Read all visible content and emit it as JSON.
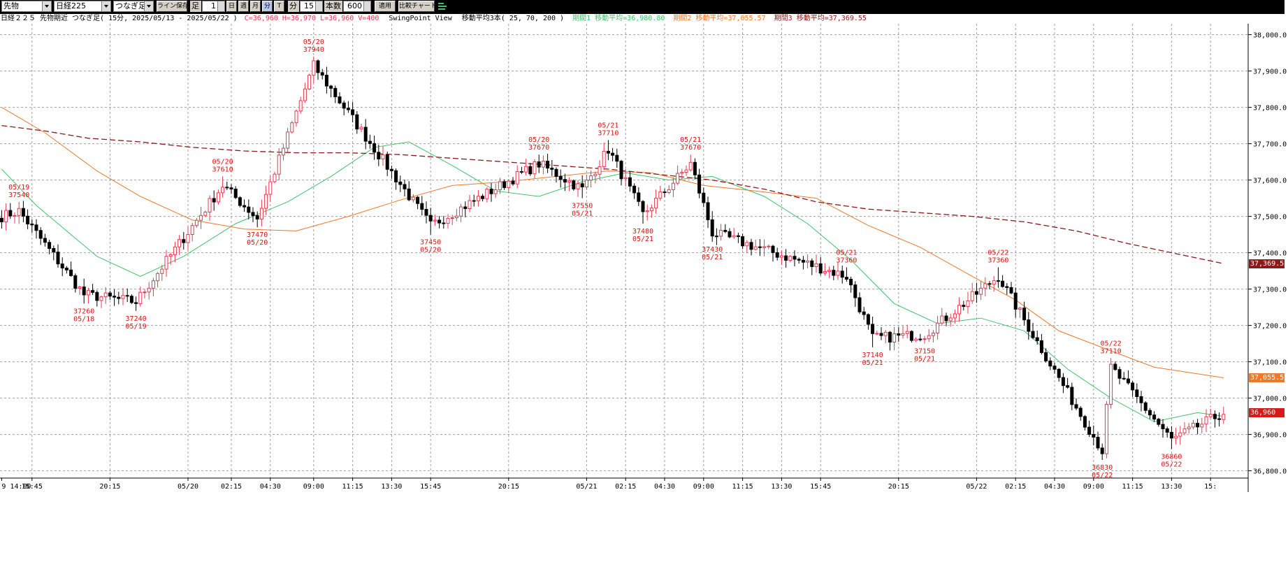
{
  "toolbar": {
    "symbol_type": "先物",
    "instrument": "日経225",
    "continuity": "つなぎ足",
    "line_save_label": "ライン保存",
    "bar_label": "足",
    "bar_count_value": "1",
    "period_day": "日",
    "period_week": "週",
    "period_month": "月",
    "period_minute": "分",
    "period_tick": "T",
    "minute_label": "分",
    "minute_value": "15",
    "bar_num_label": "本数",
    "bar_num_value": "600",
    "apply_label": "適用",
    "compare_label": "比較チャート"
  },
  "legend": {
    "title": "日経２２５ 先物期近 つなぎ足( 15分, 2025/05/13 - 2025/05/22 )",
    "ohlcv": "C=36,960 H=36,970 L=36,960 V=400",
    "view": "SwingPoint View",
    "ma_desc": "移動平均3本( 25, 70, 200 )",
    "ma1": "期間1 移動平均=36,980.80",
    "ma2": "期間2 移動平均=37,055.57",
    "ma3": "期間3 移動平均=37,369.55"
  },
  "colors": {
    "up": "#e8384f",
    "down": "#000000",
    "ma1": "#3dc46a",
    "ma2": "#f07828",
    "ma3": "#8b1a1a",
    "swing_label": "#dd1111",
    "price_tag": "#d61a1a",
    "grid": "#a0a0a0"
  },
  "chart_data": {
    "type": "candlestick",
    "ylim": [
      36780,
      38030
    ],
    "y_ticks": [
      {
        "value": 38000,
        "label": "38,000.0"
      },
      {
        "value": 37900,
        "label": "37,900.0"
      },
      {
        "value": 37800,
        "label": "37,800.0"
      },
      {
        "value": 37700,
        "label": "37,700.0"
      },
      {
        "value": 37600,
        "label": "37,600.0"
      },
      {
        "value": 37500,
        "label": "37,500.0"
      },
      {
        "value": 37400,
        "label": "37,400.0"
      },
      {
        "value": 37300,
        "label": "37,300.0"
      },
      {
        "value": 37200,
        "label": "37,200.0"
      },
      {
        "value": 37100,
        "label": "37,100.0"
      },
      {
        "value": 37000,
        "label": "37,000.0"
      },
      {
        "value": 36900,
        "label": "36,900.0"
      },
      {
        "value": 36800,
        "label": "36,800.0"
      }
    ],
    "x_ticks": [
      {
        "bar": 0,
        "label": "9 14:00"
      },
      {
        "bar": 7,
        "label": "15:45"
      },
      {
        "bar": 25,
        "label": "20:15"
      },
      {
        "bar": 43,
        "label": "05/20"
      },
      {
        "bar": 53,
        "label": "02:15"
      },
      {
        "bar": 62,
        "label": "04:30"
      },
      {
        "bar": 72,
        "label": "09:00"
      },
      {
        "bar": 81,
        "label": "11:15"
      },
      {
        "bar": 90,
        "label": "13:30"
      },
      {
        "bar": 99,
        "label": "15:45"
      },
      {
        "bar": 117,
        "label": "20:15"
      },
      {
        "bar": 135,
        "label": "05/21"
      },
      {
        "bar": 144,
        "label": "02:15"
      },
      {
        "bar": 153,
        "label": "04:30"
      },
      {
        "bar": 162,
        "label": "09:00"
      },
      {
        "bar": 171,
        "label": "11:15"
      },
      {
        "bar": 180,
        "label": "13:30"
      },
      {
        "bar": 189,
        "label": "15:45"
      },
      {
        "bar": 207,
        "label": "20:15"
      },
      {
        "bar": 225,
        "label": "05/22"
      },
      {
        "bar": 234,
        "label": "02:15"
      },
      {
        "bar": 243,
        "label": "04:30"
      },
      {
        "bar": 252,
        "label": "09:00"
      },
      {
        "bar": 261,
        "label": "11:15"
      },
      {
        "bar": 270,
        "label": "13:30"
      },
      {
        "bar": 279,
        "label": "15:"
      }
    ],
    "swing_labels": [
      {
        "bar": 4,
        "price": 37540,
        "type": "high",
        "date": "05/19"
      },
      {
        "bar": 19,
        "price": 37260,
        "type": "low",
        "date": "05/18"
      },
      {
        "bar": 31,
        "price": 37240,
        "type": "low",
        "date": "05/19"
      },
      {
        "bar": 51,
        "price": 37610,
        "type": "high",
        "date": "05/20"
      },
      {
        "bar": 59,
        "price": 37470,
        "type": "low",
        "date": "05/20"
      },
      {
        "bar": 72,
        "price": 37940,
        "type": "high",
        "date": "05/20"
      },
      {
        "bar": 99,
        "price": 37450,
        "type": "low",
        "date": "05/20"
      },
      {
        "bar": 124,
        "price": 37670,
        "type": "high",
        "date": "05/20"
      },
      {
        "bar": 134,
        "price": 37550,
        "type": "low",
        "date": "05/21"
      },
      {
        "bar": 140,
        "price": 37710,
        "type": "high",
        "date": "05/21"
      },
      {
        "bar": 148,
        "price": 37480,
        "type": "low",
        "date": "05/21"
      },
      {
        "bar": 159,
        "price": 37670,
        "type": "high",
        "date": "05/21"
      },
      {
        "bar": 164,
        "price": 37430,
        "type": "low",
        "date": "05/21"
      },
      {
        "bar": 195,
        "price": 37360,
        "type": "high",
        "date": "05/21"
      },
      {
        "bar": 201,
        "price": 37140,
        "type": "low",
        "date": "05/21"
      },
      {
        "bar": 213,
        "price": 37150,
        "type": "low",
        "date": "05/21"
      },
      {
        "bar": 230,
        "price": 37360,
        "type": "high",
        "date": "05/22"
      },
      {
        "bar": 254,
        "price": 36830,
        "type": "low",
        "date": "05/22"
      },
      {
        "bar": 256,
        "price": 37110,
        "type": "high",
        "date": "05/22"
      },
      {
        "bar": 270,
        "price": 36860,
        "type": "low",
        "date": "05/22"
      }
    ],
    "price_tags": [
      {
        "name": "ma3",
        "value": 37369.55,
        "label": "37,369.55"
      },
      {
        "name": "ma2",
        "value": 37055.57,
        "label": "37,055.57"
      },
      {
        "name": "close",
        "value": 36960,
        "label": "36,960"
      }
    ],
    "ma_paths": {
      "ma1": [
        [
          0,
          37630
        ],
        [
          8,
          37530
        ],
        [
          22,
          37390
        ],
        [
          32,
          37335
        ],
        [
          42,
          37390
        ],
        [
          54,
          37480
        ],
        [
          66,
          37540
        ],
        [
          76,
          37610
        ],
        [
          86,
          37690
        ],
        [
          94,
          37705
        ],
        [
          104,
          37640
        ],
        [
          114,
          37570
        ],
        [
          124,
          37555
        ],
        [
          134,
          37595
        ],
        [
          144,
          37620
        ],
        [
          154,
          37600
        ],
        [
          164,
          37610
        ],
        [
          176,
          37555
        ],
        [
          186,
          37480
        ],
        [
          196,
          37380
        ],
        [
          206,
          37260
        ],
        [
          216,
          37205
        ],
        [
          226,
          37220
        ],
        [
          236,
          37185
        ],
        [
          246,
          37080
        ],
        [
          256,
          37000
        ],
        [
          266,
          36935
        ],
        [
          276,
          36960
        ],
        [
          282,
          36950
        ]
      ],
      "ma2": [
        [
          0,
          37800
        ],
        [
          10,
          37730
        ],
        [
          22,
          37625
        ],
        [
          32,
          37555
        ],
        [
          44,
          37490
        ],
        [
          56,
          37465
        ],
        [
          68,
          37460
        ],
        [
          80,
          37500
        ],
        [
          92,
          37545
        ],
        [
          104,
          37585
        ],
        [
          116,
          37595
        ],
        [
          128,
          37610
        ],
        [
          140,
          37625
        ],
        [
          150,
          37620
        ],
        [
          162,
          37585
        ],
        [
          174,
          37570
        ],
        [
          188,
          37550
        ],
        [
          200,
          37475
        ],
        [
          212,
          37415
        ],
        [
          224,
          37335
        ],
        [
          234,
          37270
        ],
        [
          244,
          37185
        ],
        [
          256,
          37130
        ],
        [
          266,
          37085
        ],
        [
          282,
          37056
        ]
      ],
      "ma3": [
        [
          0,
          37750
        ],
        [
          10,
          37735
        ],
        [
          20,
          37715
        ],
        [
          32,
          37705
        ],
        [
          44,
          37690
        ],
        [
          56,
          37680
        ],
        [
          68,
          37675
        ],
        [
          80,
          37675
        ],
        [
          92,
          37670
        ],
        [
          104,
          37660
        ],
        [
          116,
          37650
        ],
        [
          128,
          37640
        ],
        [
          140,
          37630
        ],
        [
          152,
          37615
        ],
        [
          164,
          37600
        ],
        [
          176,
          37575
        ],
        [
          188,
          37540
        ],
        [
          200,
          37520
        ],
        [
          212,
          37510
        ],
        [
          224,
          37500
        ],
        [
          236,
          37485
        ],
        [
          248,
          37460
        ],
        [
          260,
          37425
        ],
        [
          272,
          37395
        ],
        [
          282,
          37370
        ]
      ]
    }
  }
}
